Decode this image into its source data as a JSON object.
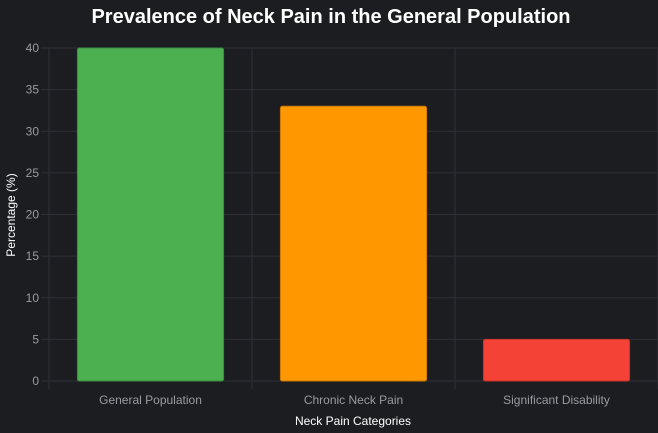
{
  "chart_data": {
    "type": "bar",
    "title": "Prevalence of Neck Pain in the General Population",
    "xlabel": "Neck Pain Categories",
    "ylabel": "Percentage (%)",
    "categories": [
      "General Population",
      "Chronic Neck Pain",
      "Significant Disability"
    ],
    "values": [
      40,
      33,
      5
    ],
    "colors": [
      "#4caf50",
      "#ff9800",
      "#f44336"
    ],
    "border_colors": [
      "#3d8c40",
      "#cc7a00",
      "#c3362b"
    ],
    "ylim": [
      0,
      40
    ],
    "yticks": [
      0,
      5,
      10,
      15,
      20,
      25,
      30,
      35,
      40
    ],
    "grid": true,
    "legend": "none"
  }
}
